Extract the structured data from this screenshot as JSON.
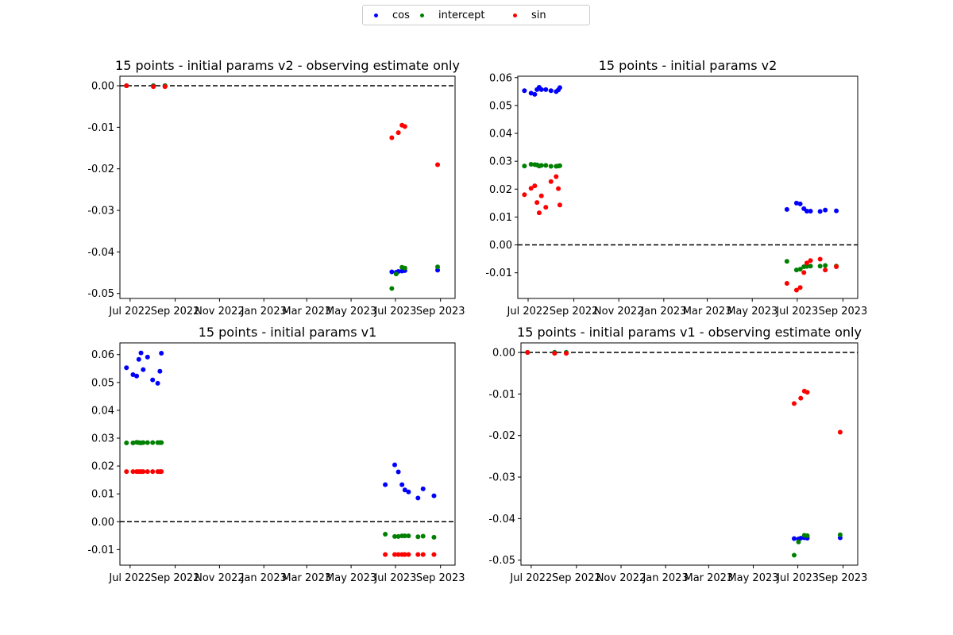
{
  "legend": {
    "items": [
      {
        "label": "cos",
        "color": "#0000ff"
      },
      {
        "label": "intercept",
        "color": "#008000"
      },
      {
        "label": "sin",
        "color": "#ff0000"
      }
    ]
  },
  "chart_data": [
    {
      "type": "scatter",
      "title": "15 points - initial params v2 - observing estimate only",
      "xticks": [
        "Jul 2022",
        "Sep 2022",
        "Nov 2022",
        "Jan 2023",
        "Mar 2023",
        "May 2023",
        "Jul 2023",
        "Sep 2023"
      ],
      "xtick_dates": [
        "2022-07-01",
        "2022-09-01",
        "2022-11-01",
        "2023-01-01",
        "2023-03-01",
        "2023-05-01",
        "2023-07-01",
        "2023-09-01"
      ],
      "xlim": [
        "2022-06-17",
        "2023-09-21"
      ],
      "ylim": [
        -0.0512,
        0.0023
      ],
      "yticks": [
        "0.00",
        "-0.01",
        "-0.02",
        "-0.03",
        "-0.04",
        "-0.05"
      ],
      "ytick_values": [
        0.0,
        -0.01,
        -0.02,
        -0.03,
        -0.04,
        -0.05
      ],
      "hline": 0.0,
      "series": [
        {
          "name": "cos",
          "color": "#0000ff",
          "points": [
            [
              "2022-06-26",
              0.0
            ],
            [
              "2022-08-02",
              0.0
            ],
            [
              "2022-08-18",
              0.0
            ],
            [
              "2023-06-26",
              -0.0448
            ],
            [
              "2023-07-02",
              -0.0449
            ],
            [
              "2023-07-05",
              -0.0447
            ],
            [
              "2023-07-10",
              -0.0446
            ],
            [
              "2023-07-14",
              -0.0445
            ],
            [
              "2023-08-28",
              -0.0444
            ]
          ]
        },
        {
          "name": "intercept",
          "color": "#008000",
          "points": [
            [
              "2022-06-26",
              0.0
            ],
            [
              "2022-08-02",
              0.0
            ],
            [
              "2022-08-18",
              0.0
            ],
            [
              "2023-06-26",
              -0.0488
            ],
            [
              "2023-07-02",
              -0.0453
            ],
            [
              "2023-07-10",
              -0.0437
            ],
            [
              "2023-07-14",
              -0.0439
            ],
            [
              "2023-08-28",
              -0.0436
            ]
          ]
        },
        {
          "name": "sin",
          "color": "#ff0000",
          "points": [
            [
              "2022-06-26",
              0.0
            ],
            [
              "2022-08-02",
              -0.0002
            ],
            [
              "2022-08-18",
              -0.0002
            ],
            [
              "2023-06-26",
              -0.0125
            ],
            [
              "2023-07-05",
              -0.0113
            ],
            [
              "2023-07-10",
              -0.0095
            ],
            [
              "2023-07-14",
              -0.0098
            ],
            [
              "2023-08-28",
              -0.019
            ]
          ]
        }
      ]
    },
    {
      "type": "scatter",
      "title": "15 points - initial params v2",
      "xticks": [
        "Jul 2022",
        "Sep 2022",
        "Nov 2022",
        "Jan 2023",
        "Mar 2023",
        "May 2023",
        "Jul 2023",
        "Sep 2023"
      ],
      "xtick_dates": [
        "2022-07-01",
        "2022-09-01",
        "2022-11-01",
        "2023-01-01",
        "2023-03-01",
        "2023-05-01",
        "2023-07-01",
        "2023-09-01"
      ],
      "xlim": [
        "2022-06-17",
        "2023-09-21"
      ],
      "ylim": [
        -0.0192,
        0.0605
      ],
      "yticks": [
        "0.06",
        "0.05",
        "0.04",
        "0.03",
        "0.02",
        "0.01",
        "0.00",
        "-0.01"
      ],
      "ytick_values": [
        0.06,
        0.05,
        0.04,
        0.03,
        0.02,
        0.01,
        0.0,
        -0.01
      ],
      "hline": 0.0,
      "series": [
        {
          "name": "cos",
          "color": "#0000ff",
          "points": [
            [
              "2022-06-26",
              0.0553
            ],
            [
              "2022-07-05",
              0.0544
            ],
            [
              "2022-07-10",
              0.054
            ],
            [
              "2022-07-13",
              0.0557
            ],
            [
              "2022-07-16",
              0.0565
            ],
            [
              "2022-07-19",
              0.0557
            ],
            [
              "2022-07-25",
              0.0557
            ],
            [
              "2022-08-01",
              0.0553
            ],
            [
              "2022-08-08",
              0.055
            ],
            [
              "2022-08-11",
              0.0556
            ],
            [
              "2022-08-13",
              0.0564
            ],
            [
              "2023-06-17",
              0.0127
            ],
            [
              "2023-06-30",
              0.015
            ],
            [
              "2023-07-05",
              0.0147
            ],
            [
              "2023-07-10",
              0.013
            ],
            [
              "2023-07-14",
              0.0121
            ],
            [
              "2023-07-19",
              0.0121
            ],
            [
              "2023-08-01",
              0.012
            ],
            [
              "2023-08-08",
              0.0125
            ],
            [
              "2023-08-23",
              0.0122
            ]
          ]
        },
        {
          "name": "intercept",
          "color": "#008000",
          "points": [
            [
              "2022-06-26",
              0.0283
            ],
            [
              "2022-07-05",
              0.0289
            ],
            [
              "2022-07-10",
              0.0288
            ],
            [
              "2022-07-13",
              0.0287
            ],
            [
              "2022-07-16",
              0.0283
            ],
            [
              "2022-07-19",
              0.0285
            ],
            [
              "2022-07-25",
              0.0285
            ],
            [
              "2022-08-01",
              0.0282
            ],
            [
              "2022-08-08",
              0.0282
            ],
            [
              "2022-08-11",
              0.0283
            ],
            [
              "2022-08-13",
              0.0284
            ],
            [
              "2023-06-17",
              -0.0059
            ],
            [
              "2023-06-30",
              -0.009
            ],
            [
              "2023-07-05",
              -0.0087
            ],
            [
              "2023-07-10",
              -0.0078
            ],
            [
              "2023-07-14",
              -0.0077
            ],
            [
              "2023-07-19",
              -0.0076
            ],
            [
              "2023-08-01",
              -0.0076
            ],
            [
              "2023-08-08",
              -0.0074
            ],
            [
              "2023-08-23",
              -0.0076
            ]
          ]
        },
        {
          "name": "sin",
          "color": "#ff0000",
          "points": [
            [
              "2022-06-26",
              0.018
            ],
            [
              "2022-07-05",
              0.0203
            ],
            [
              "2022-07-10",
              0.0212
            ],
            [
              "2022-07-13",
              0.0152
            ],
            [
              "2022-07-16",
              0.0115
            ],
            [
              "2022-07-19",
              0.0176
            ],
            [
              "2022-07-25",
              0.0135
            ],
            [
              "2022-08-01",
              0.0227
            ],
            [
              "2022-08-08",
              0.0245
            ],
            [
              "2022-08-11",
              0.0202
            ],
            [
              "2022-08-13",
              0.0143
            ],
            [
              "2023-06-17",
              -0.0138
            ],
            [
              "2023-06-30",
              -0.0162
            ],
            [
              "2023-07-05",
              -0.0153
            ],
            [
              "2023-07-10",
              -0.0099
            ],
            [
              "2023-07-14",
              -0.0065
            ],
            [
              "2023-07-19",
              -0.0056
            ],
            [
              "2023-08-01",
              -0.0051
            ],
            [
              "2023-08-08",
              -0.009
            ],
            [
              "2023-08-23",
              -0.0078
            ]
          ]
        }
      ]
    },
    {
      "type": "scatter",
      "title": "15 points - initial params v1",
      "xticks": [
        "Jul 2022",
        "Sep 2022",
        "Nov 2022",
        "Jan 2023",
        "Mar 2023",
        "May 2023",
        "Jul 2023",
        "Sep 2023"
      ],
      "xtick_dates": [
        "2022-07-01",
        "2022-09-01",
        "2022-11-01",
        "2023-01-01",
        "2023-03-01",
        "2023-05-01",
        "2023-07-01",
        "2023-09-01"
      ],
      "xlim": [
        "2022-06-17",
        "2023-09-21"
      ],
      "ylim": [
        -0.0156,
        0.0642
      ],
      "yticks": [
        "0.06",
        "0.05",
        "0.04",
        "0.03",
        "0.02",
        "0.01",
        "0.00",
        "-0.01"
      ],
      "ytick_values": [
        0.06,
        0.05,
        0.04,
        0.03,
        0.02,
        0.01,
        0.0,
        -0.01
      ],
      "hline": 0.0,
      "series": [
        {
          "name": "cos",
          "color": "#0000ff",
          "points": [
            [
              "2022-06-26",
              0.0553
            ],
            [
              "2022-07-05",
              0.0528
            ],
            [
              "2022-07-10",
              0.0523
            ],
            [
              "2022-07-13",
              0.0583
            ],
            [
              "2022-07-16",
              0.0606
            ],
            [
              "2022-07-19",
              0.0546
            ],
            [
              "2022-07-25",
              0.0591
            ],
            [
              "2022-08-01",
              0.0509
            ],
            [
              "2022-08-08",
              0.0497
            ],
            [
              "2022-08-11",
              0.054
            ],
            [
              "2022-08-13",
              0.0605
            ],
            [
              "2023-06-17",
              0.0133
            ],
            [
              "2023-06-30",
              0.0204
            ],
            [
              "2023-07-05",
              0.0179
            ],
            [
              "2023-07-10",
              0.0133
            ],
            [
              "2023-07-14",
              0.0114
            ],
            [
              "2023-07-19",
              0.0107
            ],
            [
              "2023-08-01",
              0.0085
            ],
            [
              "2023-08-08",
              0.0118
            ],
            [
              "2023-08-23",
              0.0093
            ]
          ]
        },
        {
          "name": "intercept",
          "color": "#008000",
          "points": [
            [
              "2022-06-26",
              0.0283
            ],
            [
              "2022-07-05",
              0.0283
            ],
            [
              "2022-07-10",
              0.0285
            ],
            [
              "2022-07-13",
              0.0284
            ],
            [
              "2022-07-16",
              0.0283
            ],
            [
              "2022-07-19",
              0.0284
            ],
            [
              "2022-07-25",
              0.0284
            ],
            [
              "2022-08-01",
              0.0284
            ],
            [
              "2022-08-08",
              0.0284
            ],
            [
              "2022-08-11",
              0.0284
            ],
            [
              "2022-08-13",
              0.0284
            ],
            [
              "2023-06-17",
              -0.0045
            ],
            [
              "2023-06-30",
              -0.0053
            ],
            [
              "2023-07-05",
              -0.0053
            ],
            [
              "2023-07-10",
              -0.0051
            ],
            [
              "2023-07-14",
              -0.0051
            ],
            [
              "2023-07-19",
              -0.0051
            ],
            [
              "2023-08-01",
              -0.0054
            ],
            [
              "2023-08-08",
              -0.0052
            ],
            [
              "2023-08-23",
              -0.0056
            ]
          ]
        },
        {
          "name": "sin",
          "color": "#ff0000",
          "points": [
            [
              "2022-06-26",
              0.018
            ],
            [
              "2022-07-05",
              0.018
            ],
            [
              "2022-07-10",
              0.018
            ],
            [
              "2022-07-13",
              0.018
            ],
            [
              "2022-07-16",
              0.018
            ],
            [
              "2022-07-19",
              0.018
            ],
            [
              "2022-07-25",
              0.018
            ],
            [
              "2022-08-01",
              0.018
            ],
            [
              "2022-08-08",
              0.018
            ],
            [
              "2022-08-11",
              0.018
            ],
            [
              "2022-08-13",
              0.018
            ],
            [
              "2023-06-17",
              -0.0118
            ],
            [
              "2023-06-30",
              -0.0118
            ],
            [
              "2023-07-05",
              -0.0118
            ],
            [
              "2023-07-10",
              -0.0118
            ],
            [
              "2023-07-14",
              -0.0118
            ],
            [
              "2023-07-19",
              -0.0118
            ],
            [
              "2023-08-01",
              -0.0118
            ],
            [
              "2023-08-08",
              -0.0118
            ],
            [
              "2023-08-23",
              -0.0118
            ]
          ]
        }
      ]
    },
    {
      "type": "scatter",
      "title": "15 points - initial params v1 - observing estimate only",
      "xticks": [
        "Jul 2022",
        "Sep 2022",
        "Nov 2022",
        "Jan 2023",
        "Mar 2023",
        "May 2023",
        "Jul 2023",
        "Sep 2023"
      ],
      "xtick_dates": [
        "2022-07-01",
        "2022-09-01",
        "2022-11-01",
        "2023-01-01",
        "2023-03-01",
        "2023-05-01",
        "2023-07-01",
        "2023-09-01"
      ],
      "xlim": [
        "2022-06-17",
        "2023-09-21"
      ],
      "ylim": [
        -0.0512,
        0.0023
      ],
      "yticks": [
        "0.00",
        "-0.01",
        "-0.02",
        "-0.03",
        "-0.04",
        "-0.05"
      ],
      "ytick_values": [
        0.0,
        -0.01,
        -0.02,
        -0.03,
        -0.04,
        -0.05
      ],
      "hline": 0.0,
      "series": [
        {
          "name": "cos",
          "color": "#0000ff",
          "points": [
            [
              "2022-06-26",
              0.0
            ],
            [
              "2022-08-02",
              0.0
            ],
            [
              "2022-08-18",
              0.0
            ],
            [
              "2023-06-26",
              -0.0448
            ],
            [
              "2023-07-02",
              -0.0449
            ],
            [
              "2023-07-05",
              -0.0447
            ],
            [
              "2023-07-10",
              -0.0446
            ],
            [
              "2023-07-14",
              -0.0447
            ],
            [
              "2023-08-28",
              -0.0446
            ]
          ]
        },
        {
          "name": "intercept",
          "color": "#008000",
          "points": [
            [
              "2022-06-26",
              0.0
            ],
            [
              "2022-08-02",
              0.0
            ],
            [
              "2022-08-18",
              0.0
            ],
            [
              "2023-06-26",
              -0.0488
            ],
            [
              "2023-07-02",
              -0.0456
            ],
            [
              "2023-07-10",
              -0.044
            ],
            [
              "2023-07-14",
              -0.0441
            ],
            [
              "2023-08-28",
              -0.0439
            ]
          ]
        },
        {
          "name": "sin",
          "color": "#ff0000",
          "points": [
            [
              "2022-06-26",
              0.0
            ],
            [
              "2022-08-02",
              -0.0002
            ],
            [
              "2022-08-18",
              -0.0002
            ],
            [
              "2023-06-26",
              -0.0123
            ],
            [
              "2023-07-05",
              -0.011
            ],
            [
              "2023-07-10",
              -0.0093
            ],
            [
              "2023-07-14",
              -0.0096
            ],
            [
              "2023-08-28",
              -0.0192
            ]
          ]
        }
      ]
    }
  ]
}
